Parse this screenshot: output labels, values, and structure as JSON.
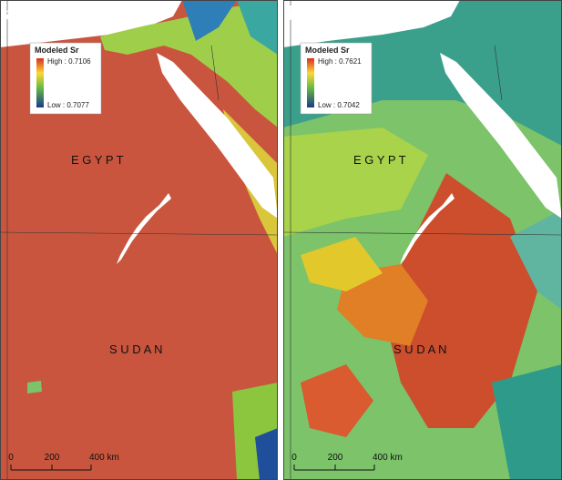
{
  "panels": [
    {
      "label": "a",
      "legend": {
        "title": "Modeled Sr",
        "high": "High : 0.7106",
        "low": "Low : 0.7077"
      },
      "countries": [
        "E G Y P T",
        "S U D A N"
      ],
      "scale": [
        "0",
        "200",
        "400 km"
      ]
    },
    {
      "label": "b",
      "legend": {
        "title": "Modeled Sr",
        "high": "High : 0.7621",
        "low": "Low : 0.7042"
      },
      "countries": [
        "E G Y P T",
        "S U D A N"
      ],
      "scale": [
        "0",
        "200",
        "400 km"
      ]
    }
  ]
}
